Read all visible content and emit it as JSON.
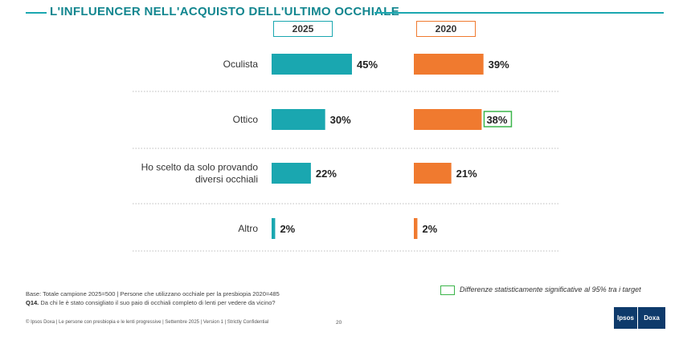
{
  "title": "L'INFLUENCER NELL'ACQUISTO DELL'ULTIMO OCCHIALE",
  "chart_data": {
    "type": "bar",
    "orientation": "horizontal",
    "categories": [
      "Oculista",
      "Ottico",
      "Ho scelto da solo provando diversi occhiali",
      "Altro"
    ],
    "category_lines": [
      [
        "Oculista"
      ],
      [
        "Ottico"
      ],
      [
        "Ho scelto da solo provando",
        "diversi occhiali"
      ],
      [
        "Altro"
      ]
    ],
    "series": [
      {
        "name": "2025",
        "color": "#1aa7b0",
        "values": [
          45,
          30,
          22,
          2
        ]
      },
      {
        "name": "2020",
        "color": "#f07a2f",
        "values": [
          39,
          38,
          21,
          2
        ]
      }
    ],
    "value_suffix": "%",
    "xlim": [
      0,
      100
    ],
    "significant": [
      {
        "series": "2020",
        "category": "Ottico"
      }
    ]
  },
  "legend": {
    "significance_text": "Differenze statisticamente significative al 95% tra i target",
    "significance_color": "#3bb54a"
  },
  "footer": {
    "base": "Base: Totale campione 2025=500 | Persone che utilizzano occhiale per la presbiopia 2020=485",
    "question_code": "Q14.",
    "question": "Da chi le è stato consigliato il suo paio di occhiali completo di lenti per vedere da vicino?",
    "credits": "© Ipsos Doxa | Le persone con presbiopia e le lenti progressive | Settembre 2025 | Version 1 | Strictly Confidential",
    "page_number": "20"
  },
  "logo": {
    "left": "Ipsos",
    "right": "Doxa"
  }
}
